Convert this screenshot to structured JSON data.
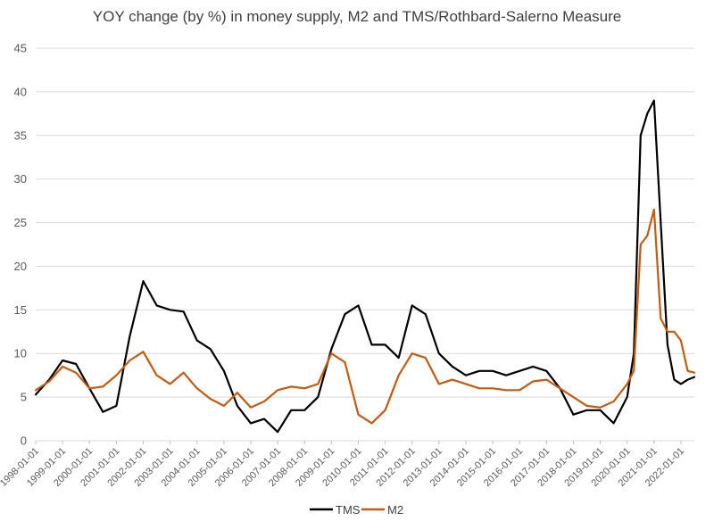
{
  "chart_data": {
    "type": "line",
    "title": "YOY change (by %) in money supply, M2 and TMS/Rothbard-Salerno Measure",
    "xlabel": "",
    "ylabel": "",
    "ylim": [
      0,
      45
    ],
    "yticks": [
      0,
      5,
      10,
      15,
      20,
      25,
      30,
      35,
      40,
      45
    ],
    "grid": true,
    "legend": "bottom",
    "xticks": [
      "1998-01-01",
      "1999-01-01",
      "2000-01-01",
      "2001-01-01",
      "2002-01-01",
      "2003-01-01",
      "2004-01-01",
      "2005-01-01",
      "2006-01-01",
      "2007-01-01",
      "2008-01-01",
      "2009-01-01",
      "2010-01-01",
      "2011-01-01",
      "2012-01-01",
      "2013-01-01",
      "2014-01-01",
      "2015-01-01",
      "2016-01-01",
      "2017-01-01",
      "2018-01-01",
      "2019-01-01",
      "2020-01-01",
      "2021-01-01",
      "2022-01-01"
    ],
    "x": [
      1998.0,
      1998.5,
      1999.0,
      1999.5,
      2000.0,
      2000.5,
      2001.0,
      2001.5,
      2002.0,
      2002.5,
      2003.0,
      2003.5,
      2004.0,
      2004.5,
      2005.0,
      2005.5,
      2006.0,
      2006.5,
      2007.0,
      2007.5,
      2008.0,
      2008.5,
      2009.0,
      2009.5,
      2010.0,
      2010.5,
      2011.0,
      2011.5,
      2012.0,
      2012.5,
      2013.0,
      2013.5,
      2014.0,
      2014.5,
      2015.0,
      2015.5,
      2016.0,
      2016.5,
      2017.0,
      2017.5,
      2018.0,
      2018.5,
      2019.0,
      2019.5,
      2020.0,
      2020.25,
      2020.5,
      2020.75,
      2021.0,
      2021.25,
      2021.5,
      2021.75,
      2022.0,
      2022.25,
      2022.5
    ],
    "series": [
      {
        "name": "TMS",
        "color": "#000000",
        "values": [
          5.3,
          7.0,
          9.2,
          8.8,
          6.0,
          3.3,
          4.0,
          12.0,
          18.3,
          15.5,
          15.0,
          14.8,
          11.5,
          10.5,
          8.0,
          4.0,
          2.0,
          2.5,
          1.0,
          3.5,
          3.5,
          5.0,
          10.5,
          14.5,
          15.5,
          11.0,
          11.0,
          9.5,
          15.5,
          14.5,
          10.0,
          8.5,
          7.5,
          8.0,
          8.0,
          7.5,
          8.0,
          8.5,
          8.0,
          6.0,
          3.0,
          3.5,
          3.5,
          2.0,
          5.0,
          10.0,
          35.0,
          37.5,
          39.0,
          25.0,
          11.0,
          7.0,
          6.5,
          7.0,
          7.3
        ]
      },
      {
        "name": "M2",
        "color": "#c55a11",
        "values": [
          5.8,
          6.8,
          8.5,
          7.8,
          6.0,
          6.2,
          7.5,
          9.2,
          10.2,
          7.5,
          6.5,
          7.8,
          6.0,
          4.8,
          4.0,
          5.5,
          3.8,
          4.5,
          5.8,
          6.2,
          6.0,
          6.5,
          10.0,
          9.0,
          3.0,
          2.0,
          3.5,
          7.5,
          10.0,
          9.5,
          6.5,
          7.0,
          6.5,
          6.0,
          6.0,
          5.8,
          5.8,
          6.8,
          7.0,
          6.0,
          5.0,
          4.0,
          3.8,
          4.5,
          6.5,
          8.0,
          22.5,
          23.5,
          26.5,
          14.0,
          12.5,
          12.5,
          11.5,
          8.0,
          7.8
        ]
      }
    ]
  }
}
